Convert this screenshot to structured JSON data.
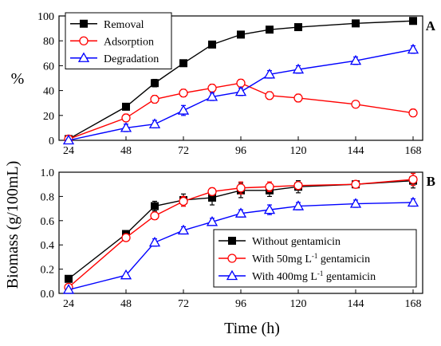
{
  "figure": {
    "xlabel": "Time (h)"
  },
  "chart_data": [
    {
      "panel": "A",
      "type": "line",
      "ylabel": "%",
      "x": [
        24,
        48,
        60,
        72,
        84,
        96,
        108,
        120,
        144,
        168
      ],
      "xticks": [
        24,
        48,
        72,
        96,
        120,
        144,
        168
      ],
      "xlim": [
        20,
        172
      ],
      "ylim": [
        0,
        100
      ],
      "yticks": [
        0,
        20,
        40,
        60,
        80,
        100
      ],
      "legend_position": "top-left",
      "series": [
        {
          "name": "Removal",
          "color": "#000000",
          "marker": "filled-square",
          "values": [
            1,
            27,
            46,
            62,
            77,
            85,
            89,
            91,
            94,
            96
          ],
          "errors": [
            0.5,
            1.5,
            3,
            2,
            1.5,
            1.5,
            1.5,
            1.2,
            1.2,
            1.2
          ]
        },
        {
          "name": "Adsorption",
          "color": "#ff0000",
          "marker": "open-circle",
          "values": [
            1,
            18,
            33,
            38,
            42,
            46,
            36,
            34,
            29,
            22
          ],
          "errors": [
            0.5,
            3,
            3,
            3,
            3,
            3,
            3,
            3,
            2,
            3
          ]
        },
        {
          "name": "Degradation",
          "color": "#0000ff",
          "marker": "open-triangle",
          "values": [
            0,
            10,
            13,
            24,
            35,
            39,
            53,
            57,
            64,
            73
          ],
          "errors": [
            0.5,
            3,
            3,
            4,
            3,
            3,
            3,
            3,
            3,
            3
          ]
        }
      ]
    },
    {
      "panel": "B",
      "type": "line",
      "ylabel": "Biomass (g/100mL)",
      "x": [
        24,
        48,
        60,
        72,
        84,
        96,
        108,
        120,
        144,
        168
      ],
      "xticks": [
        24,
        48,
        72,
        96,
        120,
        144,
        168
      ],
      "xlim": [
        20,
        172
      ],
      "ylim": [
        0,
        1.0
      ],
      "yticks": [
        0.0,
        0.2,
        0.4,
        0.6,
        0.8,
        1.0
      ],
      "legend_position": "bottom-right",
      "series": [
        {
          "name": "Without  gentamicin",
          "color": "#000000",
          "marker": "filled-square",
          "values": [
            0.12,
            0.49,
            0.72,
            0.77,
            0.79,
            0.85,
            0.85,
            0.88,
            0.9,
            0.93
          ],
          "errors": [
            0.02,
            0.02,
            0.04,
            0.05,
            0.06,
            0.06,
            0.05,
            0.05,
            0.03,
            0.06
          ]
        },
        {
          "name": "With 50mg L-1 gentamicin",
          "color": "#ff0000",
          "marker": "open-circle",
          "values": [
            0.05,
            0.46,
            0.64,
            0.76,
            0.84,
            0.87,
            0.88,
            0.89,
            0.9,
            0.94
          ],
          "errors": [
            0.02,
            0.02,
            0.03,
            0.04,
            0.03,
            0.05,
            0.04,
            0.03,
            0.03,
            0.05
          ]
        },
        {
          "name": "With 400mg L-1 gentamicin",
          "color": "#0000ff",
          "marker": "open-triangle",
          "values": [
            0.03,
            0.15,
            0.42,
            0.52,
            0.59,
            0.66,
            0.69,
            0.72,
            0.74,
            0.75
          ],
          "errors": [
            0.01,
            0.01,
            0.03,
            0.03,
            0.03,
            0.03,
            0.04,
            0.03,
            0.03,
            0.03
          ]
        }
      ]
    }
  ]
}
